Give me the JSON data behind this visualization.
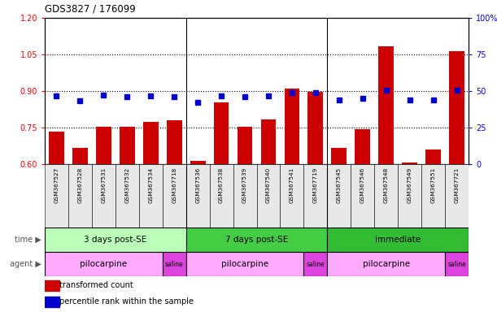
{
  "title": "GDS3827 / 176099",
  "samples": [
    "GSM367527",
    "GSM367528",
    "GSM367531",
    "GSM367532",
    "GSM367534",
    "GSM367718",
    "GSM367536",
    "GSM367538",
    "GSM367539",
    "GSM367540",
    "GSM367541",
    "GSM367719",
    "GSM367545",
    "GSM367546",
    "GSM367548",
    "GSM367549",
    "GSM367551",
    "GSM367721"
  ],
  "bar_values": [
    0.735,
    0.665,
    0.755,
    0.755,
    0.775,
    0.78,
    0.613,
    0.855,
    0.755,
    0.782,
    0.91,
    0.895,
    0.665,
    0.745,
    1.085,
    0.607,
    0.66,
    1.065
  ],
  "dot_values": [
    0.88,
    0.86,
    0.882,
    0.878,
    0.88,
    0.877,
    0.855,
    0.88,
    0.876,
    0.879,
    0.892,
    0.892,
    0.862,
    0.87,
    0.905,
    0.862,
    0.863,
    0.904
  ],
  "bar_color": "#cc0000",
  "dot_color": "#0000cc",
  "ylim_left": [
    0.6,
    1.2
  ],
  "ylim_right": [
    0,
    100
  ],
  "yticks_left": [
    0.6,
    0.75,
    0.9,
    1.05,
    1.2
  ],
  "yticks_right": [
    0,
    25,
    50,
    75,
    100
  ],
  "ytick_labels_right": [
    "0",
    "25",
    "50",
    "75",
    "100%"
  ],
  "hlines": [
    0.75,
    0.9,
    1.05
  ],
  "time_groups": [
    {
      "label": "3 days post-SE",
      "start": 0,
      "end": 6,
      "color": "#bbffbb"
    },
    {
      "label": "7 days post-SE",
      "start": 6,
      "end": 12,
      "color": "#44cc44"
    },
    {
      "label": "immediate",
      "start": 12,
      "end": 18,
      "color": "#33bb33"
    }
  ],
  "agent_groups": [
    {
      "label": "pilocarpine",
      "start": 0,
      "end": 5,
      "color": "#ffaaff"
    },
    {
      "label": "saline",
      "start": 5,
      "end": 6,
      "color": "#dd44dd"
    },
    {
      "label": "pilocarpine",
      "start": 6,
      "end": 11,
      "color": "#ffaaff"
    },
    {
      "label": "saline",
      "start": 11,
      "end": 12,
      "color": "#dd44dd"
    },
    {
      "label": "pilocarpine",
      "start": 12,
      "end": 17,
      "color": "#ffaaff"
    },
    {
      "label": "saline",
      "start": 17,
      "end": 18,
      "color": "#dd44dd"
    }
  ],
  "legend_bar_label": "transformed count",
  "legend_dot_label": "percentile rank within the sample",
  "background_color": "#ffffff",
  "group_boundaries": [
    6,
    12
  ],
  "n_samples": 18
}
